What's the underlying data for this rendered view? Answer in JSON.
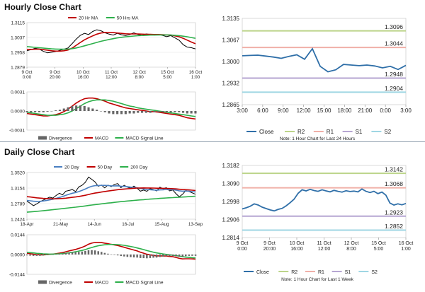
{
  "titles": {
    "hourly": "Hourly Close Chart",
    "daily": "Daily Close Chart"
  },
  "colors": {
    "ma_short": "#c00000",
    "ma_long": "#2db04b",
    "ma_20d": "#4a7fc1",
    "close": "#2f6fa8",
    "r2": "#bcd48a",
    "r1": "#f0b0a8",
    "s1": "#b6a6d2",
    "s2": "#9fd6e3",
    "price": "#000000",
    "macd": "#c00000",
    "signal": "#2db04b",
    "divergence": "#666666"
  },
  "chart_data": [
    {
      "id": "hourly_price",
      "type": "line",
      "legend": [
        "20 Hr MA",
        "50 Hrs MA"
      ],
      "yticks": [
        "1.3115",
        "1.3037",
        "1.2958",
        "1.2879"
      ],
      "ylim": [
        1.2879,
        1.3115
      ],
      "xticks": [
        [
          "9 Oct",
          "0:00"
        ],
        [
          "9 Oct",
          "20:00"
        ],
        [
          "10 Oct",
          "16:00"
        ],
        [
          "11 Oct",
          "12:00"
        ],
        [
          "12 Oct",
          "8:00"
        ],
        [
          "15 Oct",
          "5:00"
        ],
        [
          "16 Oct",
          "1:00"
        ]
      ],
      "series": [
        {
          "name": "price",
          "values": [
            1.2966,
            1.2972,
            1.2979,
            1.2975,
            1.2963,
            1.2955,
            1.2958,
            1.2962,
            1.2968,
            1.2974,
            1.2981,
            1.3004,
            1.3028,
            1.3048,
            1.3058,
            1.3052,
            1.3068,
            1.3077,
            1.3072,
            1.3061,
            1.3054,
            1.3049,
            1.3058,
            1.3051,
            1.3046,
            1.3052,
            1.3061,
            1.3053,
            1.3047,
            1.3055,
            1.3052,
            1.3049,
            1.3052,
            1.3047,
            1.3041,
            1.3046,
            1.3034,
            1.3022,
            1.2998,
            1.2985,
            1.2982,
            1.2976
          ]
        },
        {
          "name": "20 Hr MA",
          "values": [
            1.2972,
            1.2973,
            1.2974,
            1.2974,
            1.2972,
            1.2969,
            1.2966,
            1.2964,
            1.2964,
            1.2966,
            1.297,
            1.298,
            1.2995,
            1.301,
            1.3024,
            1.3035,
            1.3045,
            1.3054,
            1.306,
            1.3063,
            1.3063,
            1.3062,
            1.306,
            1.3058,
            1.3056,
            1.3055,
            1.3055,
            1.3055,
            1.3054,
            1.3053,
            1.3053,
            1.3052,
            1.3052,
            1.3051,
            1.305,
            1.3049,
            1.3045,
            1.304,
            1.3032,
            1.3022,
            1.3012,
            1.3003
          ]
        },
        {
          "name": "50 Hrs MA",
          "values": [
            1.2988,
            1.2986,
            1.2984,
            1.2982,
            1.298,
            1.2978,
            1.2976,
            1.2975,
            1.2974,
            1.2974,
            1.2975,
            1.2977,
            1.2981,
            1.2986,
            1.2992,
            1.2998,
            1.3004,
            1.301,
            1.3016,
            1.3021,
            1.3026,
            1.303,
            1.3034,
            1.3037,
            1.304,
            1.3042,
            1.3044,
            1.3046,
            1.3047,
            1.3048,
            1.3049,
            1.3049,
            1.305,
            1.305,
            1.305,
            1.3049,
            1.3048,
            1.3046,
            1.3043,
            1.304,
            1.3036,
            1.3032
          ]
        }
      ]
    },
    {
      "id": "hourly_macd",
      "type": "line",
      "yticks": [
        "0.0031",
        "0.0000",
        "-0.0031"
      ],
      "ylim": [
        -0.0031,
        0.0031
      ],
      "legend": [
        "Divergence",
        "MACD",
        "MACD Signal Line"
      ],
      "series": [
        {
          "name": "MACD",
          "values": [
            -0.0004,
            -0.0005,
            -0.0006,
            -0.0007,
            -0.0008,
            -0.0008,
            -0.0007,
            -0.0006,
            -0.0004,
            -0.0001,
            0.0003,
            0.0008,
            0.0013,
            0.0017,
            0.002,
            0.0021,
            0.0021,
            0.002,
            0.0018,
            0.0016,
            0.0013,
            0.0011,
            0.0009,
            0.0007,
            0.0005,
            0.0004,
            0.0003,
            0.0002,
            0.0001,
            0.0,
            -0.0001,
            -0.0001,
            -0.0002,
            -0.0003,
            -0.0004,
            -0.0005,
            -0.0006,
            -0.0007,
            -0.0009,
            -0.0011,
            -0.0012,
            -0.0013
          ]
        },
        {
          "name": "MACD Signal Line",
          "values": [
            -0.0002,
            -0.0003,
            -0.0004,
            -0.0005,
            -0.0006,
            -0.0007,
            -0.0007,
            -0.0007,
            -0.0006,
            -0.0005,
            -0.0003,
            0.0,
            0.0004,
            0.0008,
            0.0012,
            0.0015,
            0.0017,
            0.0018,
            0.0018,
            0.0018,
            0.0017,
            0.0016,
            0.0014,
            0.0012,
            0.001,
            0.0008,
            0.0007,
            0.0005,
            0.0004,
            0.0003,
            0.0002,
            0.0001,
            0.0,
            -0.0001,
            -0.0002,
            -0.0003,
            -0.0004,
            -0.0005,
            -0.0006,
            -0.0007,
            -0.0008,
            -0.0009
          ]
        },
        {
          "name": "Divergence",
          "values": [
            -0.0002,
            -0.0002,
            -0.0002,
            -0.0002,
            -0.0002,
            -0.0001,
            0.0,
            0.0001,
            0.0002,
            0.0004,
            0.0006,
            0.0008,
            0.0009,
            0.0009,
            0.0008,
            0.0006,
            0.0004,
            0.0002,
            0.0,
            -0.0002,
            -0.0004,
            -0.0005,
            -0.0005,
            -0.0005,
            -0.0005,
            -0.0004,
            -0.0004,
            -0.0003,
            -0.0003,
            -0.0003,
            -0.0003,
            -0.0002,
            -0.0002,
            -0.0002,
            -0.0002,
            -0.0002,
            -0.0002,
            -0.0002,
            -0.0003,
            -0.0004,
            -0.0004,
            -0.0004
          ]
        }
      ]
    },
    {
      "id": "hourly_24h",
      "type": "line",
      "ylim": [
        1.2865,
        1.3135
      ],
      "yticks": [
        "1.3135",
        "1.3067",
        "1.3000",
        "1.2932",
        "1.2865"
      ],
      "xticks": [
        "3:00",
        "6:00",
        "9:00",
        "12:00",
        "15:00",
        "18:00",
        "21:00",
        "0:00",
        "3:00"
      ],
      "levels": [
        {
          "name": "R2",
          "value": 1.3096,
          "label": "1.3096"
        },
        {
          "name": "R1",
          "value": 1.3044,
          "label": "1.3044"
        },
        {
          "name": "S1",
          "value": 1.2948,
          "label": "1.2948"
        },
        {
          "name": "S2",
          "value": 1.2904,
          "label": "1.2904"
        }
      ],
      "close": [
        1.3018,
        1.3019,
        1.302,
        1.3017,
        1.3014,
        1.301,
        1.3016,
        1.3021,
        1.3007,
        1.304,
        1.2985,
        1.2968,
        1.2974,
        1.2991,
        1.2989,
        1.2987,
        1.2989,
        1.2986,
        1.298,
        1.2985,
        1.2975,
        1.2988
      ],
      "legend": [
        "Close",
        "R2",
        "R1",
        "S1",
        "S2"
      ],
      "note": "Note: 1 Hour Chart for Last 24 Hours"
    },
    {
      "id": "daily_price",
      "type": "line",
      "legend": [
        "20 Day",
        "50 Day",
        "200 Day"
      ],
      "yticks": [
        "1.3520",
        "1.3154",
        "1.2789",
        "1.2424"
      ],
      "ylim": [
        1.2424,
        1.352
      ],
      "xticks": [
        "18-Apr",
        "21-May",
        "14-Jun",
        "16-Jul",
        "15-Aug",
        "13-Sep"
      ],
      "series": [
        {
          "name": "price",
          "values": [
            1.2845,
            1.2798,
            1.2742,
            1.2781,
            1.2829,
            1.287,
            1.2905,
            1.294,
            1.2921,
            1.298,
            1.3034,
            1.2995,
            1.3081,
            1.3098,
            1.312,
            1.3074,
            1.3182,
            1.3219,
            1.329,
            1.3412,
            1.336,
            1.3301,
            1.3198,
            1.3226,
            1.3159,
            1.3224,
            1.3189,
            1.3241,
            1.326,
            1.3165,
            1.322,
            1.3176,
            1.3149,
            1.3201,
            1.3152,
            1.3081,
            1.3109,
            1.3079,
            1.3142,
            1.312,
            1.3089,
            1.3176,
            1.314,
            1.3165,
            1.3089,
            1.3108,
            1.3022,
            1.2951,
            1.3008,
            1.3096,
            1.3075,
            1.3042,
            1.301
          ]
        },
        {
          "name": "20 Day",
          "values": [
            1.2862,
            1.2855,
            1.2846,
            1.284,
            1.2842,
            1.285,
            1.2862,
            1.2877,
            1.2891,
            1.291,
            1.2934,
            1.2956,
            1.2985,
            1.301,
            1.3033,
            1.3048,
            1.3072,
            1.31,
            1.3132,
            1.317,
            1.3196,
            1.3211,
            1.3214,
            1.3218,
            1.3217,
            1.3215,
            1.3206,
            1.3206,
            1.3208,
            1.3198,
            1.3195,
            1.3186,
            1.3177,
            1.3171,
            1.3162,
            1.3145,
            1.3133,
            1.3121,
            1.3116,
            1.311,
            1.3104,
            1.3111,
            1.3114,
            1.3121,
            1.3116,
            1.3118,
            1.3106,
            1.309,
            1.3082,
            1.3085,
            1.3081,
            1.3072,
            1.3062
          ]
        },
        {
          "name": "50 Day",
          "values": [
            1.2952,
            1.2945,
            1.2936,
            1.2926,
            1.2919,
            1.2913,
            1.2909,
            1.2906,
            1.2903,
            1.2903,
            1.2907,
            1.291,
            1.2918,
            1.2927,
            1.2937,
            1.2945,
            1.2957,
            1.297,
            1.2985,
            1.3004,
            1.3021,
            1.3036,
            1.3049,
            1.3062,
            1.3073,
            1.3085,
            1.3095,
            1.3106,
            1.3117,
            1.3124,
            1.3132,
            1.3138,
            1.3143,
            1.315,
            1.3155,
            1.3156,
            1.3158,
            1.3157,
            1.3156,
            1.3154,
            1.3151,
            1.315,
            1.3148,
            1.3147,
            1.3143,
            1.314,
            1.3134,
            1.3126,
            1.312,
            1.3116,
            1.3111,
            1.3105,
            1.3098
          ]
        },
        {
          "name": "200 Day",
          "values": [
            1.2589,
            1.2595,
            1.2601,
            1.2608,
            1.2615,
            1.2622,
            1.263,
            1.2638,
            1.2646,
            1.2654,
            1.2663,
            1.2671,
            1.268,
            1.2689,
            1.2698,
            1.2707,
            1.2716,
            1.2725,
            1.2735,
            1.2746,
            1.2756,
            1.2766,
            1.2775,
            1.2784,
            1.2793,
            1.2802,
            1.281,
            1.2819,
            1.2827,
            1.2835,
            1.2843,
            1.285,
            1.2857,
            1.2864,
            1.2871,
            1.2877,
            1.2883,
            1.2889,
            1.2895,
            1.2901,
            1.2906,
            1.2912,
            1.2917,
            1.2922,
            1.2927,
            1.2931,
            1.2935,
            1.2939,
            1.2944,
            1.2949,
            1.2954,
            1.2959,
            1.2963
          ]
        }
      ]
    },
    {
      "id": "daily_macd",
      "type": "line",
      "yticks": [
        "0.0144",
        "0.0000",
        "-0.0144"
      ],
      "ylim": [
        -0.0144,
        0.0144
      ],
      "legend": [
        "Divergence",
        "MACD",
        "MACD Signal Line"
      ],
      "series": [
        {
          "name": "MACD",
          "values": [
            0.001,
            0.0006,
            0.0002,
            -0.0001,
            -0.0002,
            -0.0002,
            -0.0001,
            0.0001,
            0.0003,
            0.0006,
            0.001,
            0.0014,
            0.002,
            0.0026,
            0.0032,
            0.0037,
            0.0044,
            0.0052,
            0.0062,
            0.0075,
            0.0083,
            0.0088,
            0.0088,
            0.0087,
            0.0083,
            0.0079,
            0.0074,
            0.007,
            0.0066,
            0.0059,
            0.0053,
            0.0046,
            0.0039,
            0.0033,
            0.0026,
            0.0017,
            0.001,
            0.0002,
            -0.0002,
            -0.0006,
            -0.001,
            -0.001,
            -0.0011,
            -0.0011,
            -0.0014,
            -0.0016,
            -0.0021,
            -0.0028,
            -0.0032,
            -0.0031,
            -0.0031,
            -0.0032,
            -0.0034
          ]
        },
        {
          "name": "MACD Signal Line",
          "values": [
            0.0016,
            0.0014,
            0.0012,
            0.0009,
            0.0007,
            0.0005,
            0.0004,
            0.0003,
            0.0003,
            0.0004,
            0.0005,
            0.0007,
            0.0009,
            0.0013,
            0.0016,
            0.002,
            0.0025,
            0.003,
            0.0036,
            0.0044,
            0.0051,
            0.0058,
            0.0064,
            0.0068,
            0.0071,
            0.0073,
            0.0073,
            0.0073,
            0.0072,
            0.007,
            0.0067,
            0.0063,
            0.0058,
            0.0054,
            0.0048,
            0.0042,
            0.0036,
            0.0029,
            0.0023,
            0.0017,
            0.0012,
            0.0008,
            0.0004,
            0.0001,
            -0.0002,
            -0.0005,
            -0.0008,
            -0.0012,
            -0.0016,
            -0.0019,
            -0.0021,
            -0.0023,
            -0.0025
          ]
        },
        {
          "name": "Divergence",
          "values": [
            -0.0006,
            -0.0008,
            -0.001,
            -0.001,
            -0.0009,
            -0.0007,
            -0.0005,
            -0.0002,
            0.0,
            0.0002,
            0.0005,
            0.0007,
            0.0011,
            0.0013,
            0.0016,
            0.0017,
            0.0019,
            0.0022,
            0.0026,
            0.0031,
            0.0032,
            0.003,
            0.0024,
            0.0019,
            0.0012,
            0.0006,
            0.0001,
            -0.0003,
            -0.0006,
            -0.0011,
            -0.0014,
            -0.0017,
            -0.0019,
            -0.0021,
            -0.0022,
            -0.0025,
            -0.0026,
            -0.0027,
            -0.0025,
            -0.0023,
            -0.0022,
            -0.0018,
            -0.0015,
            -0.0012,
            -0.0012,
            -0.0011,
            -0.0013,
            -0.0016,
            -0.0016,
            -0.0012,
            -0.001,
            -0.0009,
            -0.0009
          ]
        }
      ]
    },
    {
      "id": "hourly_week",
      "type": "line",
      "ylim": [
        1.2814,
        1.3182
      ],
      "yticks": [
        "1.3182",
        "1.3090",
        "1.2998",
        "1.2906",
        "1.2814"
      ],
      "xticks": [
        [
          "9 Oct",
          "0:00"
        ],
        [
          "9 Oct",
          "20:00"
        ],
        [
          "10 Oct",
          "16:00"
        ],
        [
          "11 Oct",
          "12:00"
        ],
        [
          "12 Oct",
          "8:00"
        ],
        [
          "15 Oct",
          "5:00"
        ],
        [
          "16 Oct",
          "1:00"
        ]
      ],
      "levels": [
        {
          "name": "R2",
          "value": 1.3142,
          "label": "1.3142"
        },
        {
          "name": "R1",
          "value": 1.3068,
          "label": "1.3068"
        },
        {
          "name": "S1",
          "value": 1.2923,
          "label": "1.2923"
        },
        {
          "name": "S2",
          "value": 1.2852,
          "label": "1.2852"
        }
      ],
      "close": [
        1.296,
        1.2966,
        1.2974,
        1.2986,
        1.298,
        1.2969,
        1.2962,
        1.2955,
        1.295,
        1.2958,
        1.2963,
        1.2976,
        1.2992,
        1.301,
        1.304,
        1.3058,
        1.3052,
        1.306,
        1.3054,
        1.305,
        1.3058,
        1.3052,
        1.3047,
        1.3055,
        1.305,
        1.3046,
        1.3053,
        1.3049,
        1.3051,
        1.3047,
        1.3062,
        1.305,
        1.3044,
        1.305,
        1.3038,
        1.3046,
        1.303,
        1.299,
        1.298,
        1.2986,
        1.2981,
        1.2988
      ],
      "legend": [
        "Close",
        "R2",
        "R1",
        "S1",
        "S2"
      ],
      "note": "Note: 1 Hour Chart for Last 1 Week"
    }
  ]
}
